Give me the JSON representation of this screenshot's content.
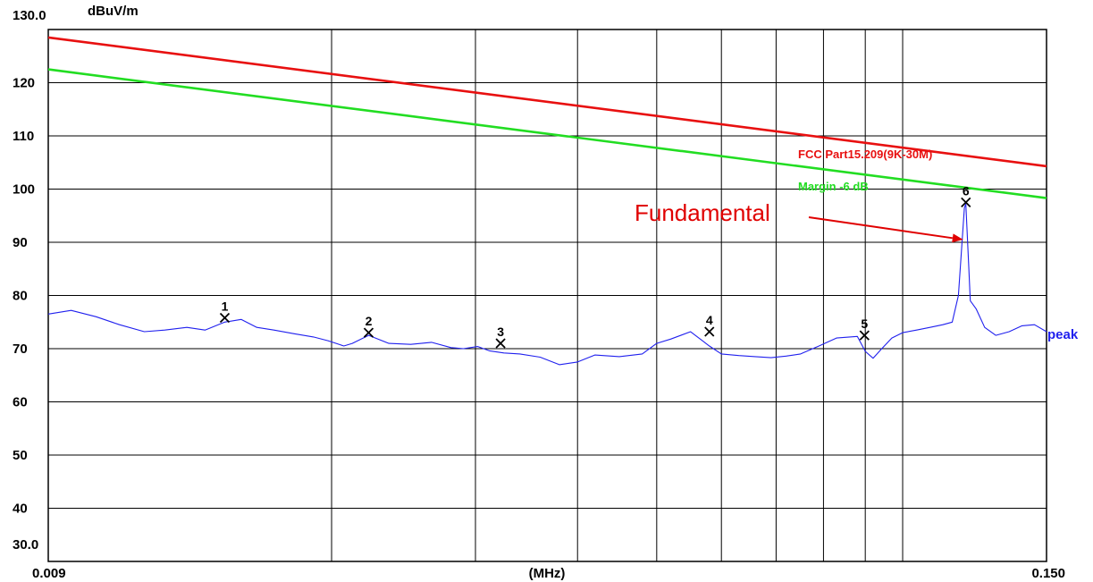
{
  "chart_data": {
    "type": "line",
    "ylabel": "dBuV/m",
    "xlabel": "(MHz)",
    "x_scale": "log",
    "xlim": [
      0.009,
      0.15
    ],
    "ylim": [
      30,
      130
    ],
    "x_tick_labels": [
      "0.009",
      "(MHz)",
      "0.150"
    ],
    "y_tick_labels": [
      "130.0",
      "120",
      "110",
      "100",
      "90",
      "80",
      "70",
      "60",
      "50",
      "40",
      "30.0"
    ],
    "y_ticks": [
      130,
      120,
      110,
      100,
      90,
      80,
      70,
      60,
      50,
      40,
      30
    ],
    "x_grid": [
      0.02,
      0.03,
      0.04,
      0.05,
      0.06,
      0.07,
      0.08,
      0.09,
      0.1
    ],
    "grid": true,
    "colors": {
      "limit": "#e81010",
      "margin": "#22dd22",
      "trace": "#2020ee",
      "annotation": "#e00000"
    },
    "series": [
      {
        "name": "FCC Part15.209(9K-30M)",
        "x": [
          0.009,
          0.15
        ],
        "y": [
          128.5,
          104.3
        ]
      },
      {
        "name": "Margin -6 dB",
        "x": [
          0.009,
          0.15
        ],
        "y": [
          122.5,
          98.3
        ]
      },
      {
        "name": "peak",
        "x": [
          0.009,
          0.0096,
          0.0103,
          0.011,
          0.0118,
          0.0125,
          0.0133,
          0.014,
          0.0148,
          0.0155,
          0.0162,
          0.017,
          0.018,
          0.019,
          0.0198,
          0.0207,
          0.0212,
          0.0222,
          0.0235,
          0.025,
          0.0265,
          0.028,
          0.029,
          0.0302,
          0.0312,
          0.0325,
          0.034,
          0.036,
          0.038,
          0.04,
          0.042,
          0.045,
          0.048,
          0.05,
          0.052,
          0.055,
          0.058,
          0.06,
          0.063,
          0.066,
          0.069,
          0.072,
          0.075,
          0.079,
          0.083,
          0.088,
          0.09,
          0.092,
          0.094,
          0.097,
          0.1,
          0.104,
          0.108,
          0.112,
          0.115,
          0.117,
          0.119,
          0.1195,
          0.1205,
          0.121,
          0.123,
          0.126,
          0.13,
          0.135,
          0.14,
          0.145,
          0.15
        ],
        "y": [
          76.5,
          77.2,
          76.0,
          74.5,
          73.2,
          73.5,
          74.0,
          73.5,
          75.0,
          75.5,
          74.0,
          73.5,
          72.8,
          72.2,
          71.5,
          70.5,
          71.0,
          72.5,
          71.0,
          70.8,
          71.2,
          70.2,
          70.0,
          70.4,
          69.6,
          69.2,
          69.0,
          68.4,
          67.0,
          67.5,
          68.8,
          68.5,
          69.0,
          71.0,
          71.8,
          73.2,
          70.5,
          69.0,
          68.7,
          68.5,
          68.3,
          68.6,
          69.0,
          70.5,
          72.0,
          72.3,
          69.5,
          68.2,
          69.8,
          72.0,
          73.0,
          73.5,
          74.0,
          74.5,
          75.0,
          80.0,
          96.5,
          97.2,
          85.0,
          79.0,
          77.5,
          74.0,
          72.5,
          73.2,
          74.3,
          74.5,
          73.2
        ]
      }
    ],
    "markers": [
      {
        "label": "1",
        "x": 0.0148,
        "y": 75.8
      },
      {
        "label": "2",
        "x": 0.0222,
        "y": 73.0
      },
      {
        "label": "3",
        "x": 0.0322,
        "y": 71.0
      },
      {
        "label": "4",
        "x": 0.058,
        "y": 73.2
      },
      {
        "label": "5",
        "x": 0.0898,
        "y": 72.5
      },
      {
        "label": "6",
        "x": 0.1195,
        "y": 97.5
      }
    ],
    "annotations": [
      {
        "text": "Fundamental",
        "target": {
          "x": 0.1195,
          "y": 90.5
        }
      }
    ]
  }
}
